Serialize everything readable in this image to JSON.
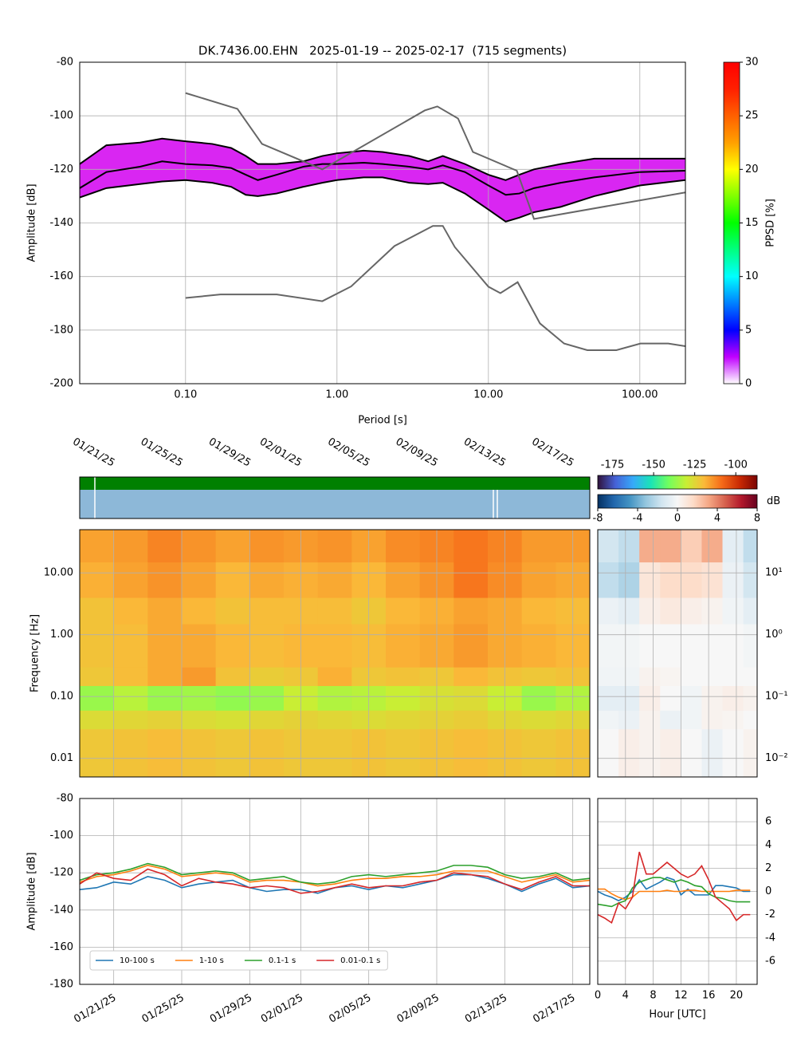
{
  "chart_data": [
    {
      "type": "ppsd",
      "title": "DK.7436.00.EHN   2025-01-19 -- 2025-02-17  (715 segments)",
      "x_label": "Period [s]",
      "y_label": "Amplitude [dB]",
      "xscale": "log",
      "grid": true,
      "xlim": [
        0.02,
        200
      ],
      "ylim": [
        -200,
        -80
      ],
      "xticks": [
        {
          "value": 0.1,
          "label": "0.10"
        },
        {
          "value": 1,
          "label": "1.00"
        },
        {
          "value": 10,
          "label": "10.00"
        },
        {
          "value": 100,
          "label": "100.00"
        }
      ],
      "yticks": [
        -200,
        -180,
        -160,
        -140,
        -120,
        -100,
        -80
      ],
      "band_color": "#d200f0",
      "x": [
        0.02,
        0.03,
        0.05,
        0.07,
        0.1,
        0.15,
        0.2,
        0.25,
        0.3,
        0.4,
        0.6,
        0.8,
        1,
        1.5,
        2,
        3,
        4,
        5,
        7,
        10,
        13,
        16,
        20,
        30,
        50,
        100,
        200
      ],
      "series": [
        {
          "color": "#000000",
          "values": [
            -118,
            -111,
            -110,
            -108.5,
            -109.5,
            -110.5,
            -112,
            -115,
            -118,
            -118,
            -117,
            -115,
            -114,
            -113,
            -113.5,
            -115,
            -117,
            -115,
            -118,
            -122,
            -124,
            -122,
            -120,
            -118,
            -116,
            -116,
            -116
          ]
        },
        {
          "color": "#000000",
          "values": [
            -127,
            -121,
            -119,
            -117,
            -118,
            -118.5,
            -119.5,
            -122,
            -124,
            -122,
            -119,
            -118,
            -118,
            -117.5,
            -118,
            -119,
            -120,
            -118.5,
            -121,
            -126,
            -129.5,
            -129,
            -127,
            -125,
            -123,
            -121,
            -120.5
          ]
        },
        {
          "color": "#000000",
          "values": [
            -130.5,
            -127,
            -125.5,
            -124.5,
            -124,
            -125,
            -126.5,
            -129.5,
            -130,
            -129,
            -126.5,
            -125,
            -124,
            -123,
            -123,
            -125,
            -125.5,
            -125,
            -129,
            -135,
            -139.5,
            -138,
            -136,
            -134,
            -130,
            -126,
            -124
          ]
        },
        {
          "color": "#666666",
          "x": [
            0.1,
            0.22,
            0.32,
            0.8,
            3.8,
            4.6,
            6.3,
            7.9,
            15.4,
            20,
            200
          ],
          "values": [
            -91.5,
            -97.4,
            -110.5,
            -120,
            -98,
            -96.5,
            -101,
            -113.5,
            -120.5,
            -138.5,
            -128.6
          ]
        },
        {
          "color": "#666666",
          "x": [
            0.1,
            0.17,
            0.4,
            0.8,
            1.24,
            2.4,
            4.3,
            5,
            6,
            10,
            12,
            15.6,
            21.9,
            31.6,
            45,
            70,
            101,
            154,
            200
          ],
          "values": [
            -168,
            -166.7,
            -166.7,
            -169.2,
            -163.7,
            -148.6,
            -141.1,
            -141.1,
            -149,
            -163.8,
            -166.2,
            -162.1,
            -177.5,
            -185,
            -187.5,
            -187.5,
            -185,
            -185,
            -186
          ]
        }
      ],
      "colorbar": {
        "label": "PPSD [%]",
        "lim": [
          0,
          30
        ],
        "ticks": [
          0,
          5,
          10,
          15,
          20,
          25,
          30
        ],
        "colormap": [
          "#ffffff",
          "#c000ff",
          "#0000ff",
          "#0080ff",
          "#00ffff",
          "#00ff80",
          "#00ff00",
          "#80ff00",
          "#ffff00",
          "#ffa000",
          "#ff6000",
          "#ff2000",
          "#ff0000"
        ]
      }
    },
    {
      "type": "spectrogram",
      "y_label": "Frequency [Hz]",
      "yscale": "log",
      "grid": true,
      "xlim": [
        "2025-01-19",
        "2025-02-18"
      ],
      "ylim": [
        0.005,
        50
      ],
      "xticks": [
        {
          "value": "2025-01-21",
          "label": "01/21/25"
        },
        {
          "value": "2025-01-25",
          "label": "01/25/25"
        },
        {
          "value": "2025-01-29",
          "label": "01/29/25"
        },
        {
          "value": "2025-02-01",
          "label": "02/01/25"
        },
        {
          "value": "2025-02-05",
          "label": "02/05/25"
        },
        {
          "value": "2025-02-09",
          "label": "02/09/25"
        },
        {
          "value": "2025-02-13",
          "label": "02/13/25"
        },
        {
          "value": "2025-02-17",
          "label": "02/17/25"
        }
      ],
      "yticks": [
        0.01,
        {
          "value": 0.1,
          "label": "0.10"
        },
        {
          "value": 1,
          "label": "1.00"
        },
        {
          "value": 10,
          "label": "10.00"
        }
      ],
      "x_bins": [
        "2025-01-19",
        "2025-01-21",
        "2025-01-23",
        "2025-01-25",
        "2025-01-27",
        "2025-01-29",
        "2025-01-31",
        "2025-02-02",
        "2025-02-04",
        "2025-02-06",
        "2025-02-08",
        "2025-02-10",
        "2025-02-12",
        "2025-02-14",
        "2025-02-16",
        "2025-02-18"
      ],
      "y_bins": [
        0.005,
        0.03,
        0.06,
        0.15,
        0.3,
        1.5,
        4,
        15,
        50
      ],
      "values": [
        [
          -122,
          -121,
          -120,
          -121,
          -122,
          -121,
          -122,
          -122,
          -121,
          -122,
          -121,
          -120,
          -121,
          -122,
          -121
        ],
        [
          -126,
          -125,
          -124,
          -126,
          -127,
          -125,
          -124,
          -125,
          -126,
          -125,
          -124,
          -123,
          -125,
          -126,
          -125
        ],
        [
          -136,
          -132,
          -136,
          -135,
          -137,
          -136,
          -130,
          -133,
          -132,
          -130,
          -127,
          -126,
          -130,
          -136,
          -133
        ],
        [
          -122,
          -120,
          -117,
          -115,
          -121,
          -123,
          -122,
          -118,
          -122,
          -121,
          -122,
          -119,
          -121,
          -122,
          -121
        ],
        [
          -121,
          -120,
          -117,
          -117,
          -119,
          -120,
          -119,
          -119,
          -120,
          -118,
          -117,
          -115,
          -117,
          -118,
          -119
        ],
        [
          -121,
          -119,
          -117,
          -119,
          -121,
          -120,
          -120,
          -120,
          -122,
          -119,
          -118,
          -116,
          -117,
          -119,
          -120
        ],
        [
          -118,
          -116,
          -114,
          -116,
          -119,
          -117,
          -118,
          -117,
          -119,
          -116,
          -114,
          -110,
          -113,
          -116,
          -117
        ],
        [
          -116,
          -115,
          -112,
          -114,
          -116,
          -114,
          -115,
          -114,
          -116,
          -113,
          -112,
          -110,
          -112,
          -115,
          -115
        ]
      ],
      "colorbar": {
        "lim": [
          -184,
          -87
        ],
        "ticks": [
          -175,
          -150,
          -125,
          -100
        ],
        "colormap": [
          "#30123b",
          "#4662d7",
          "#36aaf9",
          "#1ae4b6",
          "#72fe5e",
          "#c8ef34",
          "#faba39",
          "#f66b19",
          "#ca2a04",
          "#7a0403"
        ]
      }
    },
    {
      "type": "heatmap",
      "yscale": "log",
      "grid": true,
      "x_ticklabels": false,
      "xlim": [
        0,
        23
      ],
      "ylim": [
        0.005,
        50
      ],
      "xticks": [
        0,
        4,
        8,
        12,
        16,
        20
      ],
      "yticks": [
        {
          "value": 0.01,
          "label": "10⁻²"
        },
        {
          "value": 0.1,
          "label": "10⁻¹"
        },
        {
          "value": 1,
          "label": "10⁰"
        },
        {
          "value": 10,
          "label": "10¹"
        }
      ],
      "x_bins": [
        0,
        3,
        6,
        9,
        12,
        15,
        18,
        21,
        23
      ],
      "y_bins": [
        0.005,
        0.03,
        0.06,
        0.15,
        0.3,
        1.5,
        4,
        15,
        50
      ],
      "values": [
        [
          0,
          0.5,
          0.3,
          0.5,
          0,
          -0.5,
          0,
          0.3
        ],
        [
          -0.3,
          -0.5,
          0.3,
          -0.5,
          -0.3,
          0.3,
          0.2,
          0
        ],
        [
          -0.8,
          -0.8,
          0.5,
          0,
          -0.3,
          0.3,
          0.5,
          0.3
        ],
        [
          -0.3,
          -0.3,
          0.3,
          0.2,
          0,
          0,
          0,
          0
        ],
        [
          -0.2,
          -0.2,
          0,
          0,
          0,
          0,
          0,
          -0.2
        ],
        [
          -0.5,
          -0.8,
          0.5,
          0.8,
          0.5,
          0.3,
          -0.3,
          -0.8
        ],
        [
          -2,
          -2.5,
          1,
          1.5,
          1.5,
          1.2,
          -0.5,
          -1.5
        ],
        [
          -1.5,
          -2,
          3,
          3,
          2,
          3,
          -0.8,
          -2
        ]
      ],
      "colorbar": {
        "label": "dB",
        "lim": [
          -8,
          8
        ],
        "ticks": [
          -8,
          -4,
          0,
          4,
          8
        ],
        "colormap": [
          "#053061",
          "#2166ac",
          "#4393c3",
          "#92c5de",
          "#d1e5f0",
          "#f7f7f7",
          "#fddbc7",
          "#f4a582",
          "#d6604d",
          "#b2182b",
          "#67001f"
        ]
      }
    },
    {
      "type": "line",
      "y_label": "Amplitude [dB]",
      "grid": true,
      "legend": "lower left",
      "xlim": [
        "2025-01-19",
        "2025-02-18"
      ],
      "ylim": [
        -180,
        -80
      ],
      "xticks": [
        {
          "value": "2025-01-21",
          "label": "01/21/25"
        },
        {
          "value": "2025-01-25",
          "label": "01/25/25"
        },
        {
          "value": "2025-01-29",
          "label": "01/29/25"
        },
        {
          "value": "2025-02-01",
          "label": "02/01/25"
        },
        {
          "value": "2025-02-05",
          "label": "02/05/25"
        },
        {
          "value": "2025-02-09",
          "label": "02/09/25"
        },
        {
          "value": "2025-02-13",
          "label": "02/13/25"
        },
        {
          "value": "2025-02-17",
          "label": "02/17/25"
        }
      ],
      "yticks": [
        -180,
        -160,
        -140,
        -120,
        -100,
        -80
      ],
      "x": [
        "2025-01-19",
        "2025-01-20",
        "2025-01-21",
        "2025-01-22",
        "2025-01-23",
        "2025-01-24",
        "2025-01-25",
        "2025-01-26",
        "2025-01-27",
        "2025-01-28",
        "2025-01-29",
        "2025-01-30",
        "2025-01-31",
        "2025-02-01",
        "2025-02-02",
        "2025-02-03",
        "2025-02-04",
        "2025-02-05",
        "2025-02-06",
        "2025-02-07",
        "2025-02-08",
        "2025-02-09",
        "2025-02-10",
        "2025-02-11",
        "2025-02-12",
        "2025-02-13",
        "2025-02-14",
        "2025-02-15",
        "2025-02-16",
        "2025-02-17",
        "2025-02-18"
      ],
      "series": [
        {
          "name": "10-100 s",
          "color": "#1f77b4",
          "values": [
            -129,
            -128,
            -125,
            -126,
            -122,
            -124,
            -128,
            -126,
            -125,
            -124,
            -128,
            -130,
            -129,
            -129,
            -131,
            -128,
            -127,
            -129,
            -127,
            -128,
            -126,
            -124,
            -121,
            -121,
            -123,
            -126,
            -130,
            -126,
            -123,
            -128,
            -127
          ]
        },
        {
          "name": "1-10 s",
          "color": "#ff7f0e",
          "values": [
            -125,
            -122,
            -121,
            -119,
            -116,
            -118,
            -122,
            -121,
            -120,
            -121,
            -125,
            -124,
            -124,
            -125,
            -127,
            -126,
            -124,
            -123,
            -123,
            -122,
            -122,
            -121,
            -119,
            -119,
            -119,
            -122,
            -125,
            -123,
            -121,
            -125,
            -124
          ]
        },
        {
          "name": "0.1-1 s",
          "color": "#2ca02c",
          "values": [
            -124,
            -121,
            -120,
            -118,
            -115,
            -117,
            -121,
            -120,
            -119,
            -120,
            -124,
            -123,
            -122,
            -125,
            -126,
            -125,
            -122,
            -121,
            -122,
            -121,
            -120,
            -119,
            -116,
            -116,
            -117,
            -121,
            -123,
            -122,
            -120,
            -124,
            -123
          ]
        },
        {
          "name": "0.01-0.1 s",
          "color": "#d62728",
          "values": [
            -126,
            -120,
            -123,
            -124,
            -118,
            -121,
            -127,
            -123,
            -125,
            -126,
            -128,
            -127,
            -128,
            -131,
            -130,
            -128,
            -126,
            -128,
            -127,
            -127,
            -125,
            -124,
            -120,
            -121,
            -122,
            -126,
            -129,
            -125,
            -122,
            -127,
            -127
          ]
        }
      ]
    },
    {
      "type": "line",
      "x_label": "Hour [UTC]",
      "grid": true,
      "xlim": [
        0,
        23
      ],
      "y2lim": [
        -8,
        8
      ],
      "xticks": [
        0,
        4,
        8,
        12,
        16,
        20
      ],
      "y2ticks": [
        -6,
        -4,
        -2,
        0,
        2,
        4,
        6
      ],
      "x": [
        0,
        1,
        2,
        3,
        4,
        5,
        6,
        7,
        8,
        9,
        10,
        11,
        12,
        13,
        14,
        15,
        16,
        17,
        18,
        19,
        20,
        21,
        22
      ],
      "series": [
        {
          "color": "#1f77b4",
          "axis": "y2",
          "values": [
            0,
            -0.3,
            -0.5,
            -0.8,
            -0.5,
            0,
            1.0,
            0.2,
            0.5,
            0.8,
            1.2,
            1.0,
            -0.3,
            0.2,
            -0.3,
            -0.3,
            -0.3,
            0.5,
            0.5,
            0.4,
            0.3,
            0,
            0
          ]
        },
        {
          "color": "#ff7f0e",
          "axis": "y2",
          "values": [
            0.2,
            0.2,
            -0.2,
            -0.5,
            -0.7,
            -0.5,
            0,
            0,
            0,
            0,
            0.1,
            0,
            0,
            0.1,
            0.1,
            0,
            0,
            0,
            0,
            0,
            0.1,
            0.1,
            0.1
          ]
        },
        {
          "color": "#2ca02c",
          "axis": "y2",
          "values": [
            -1.1,
            -1.2,
            -1.3,
            -1.0,
            -0.8,
            0.3,
            0.8,
            1.0,
            1.2,
            1.2,
            1.0,
            0.8,
            1.0,
            0.8,
            0.5,
            0.4,
            -0.2,
            -0.5,
            -0.6,
            -0.8,
            -0.9,
            -0.9,
            -0.9
          ]
        },
        {
          "color": "#d62728",
          "axis": "y2",
          "values": [
            -2,
            -2.3,
            -2.7,
            -1.0,
            -1.5,
            -0.5,
            3.4,
            1.5,
            1.5,
            2.0,
            2.5,
            2.0,
            1.5,
            1.2,
            1.5,
            2.2,
            1.0,
            -0.5,
            -1,
            -1.5,
            -2.5,
            -2,
            -2
          ]
        }
      ]
    }
  ]
}
